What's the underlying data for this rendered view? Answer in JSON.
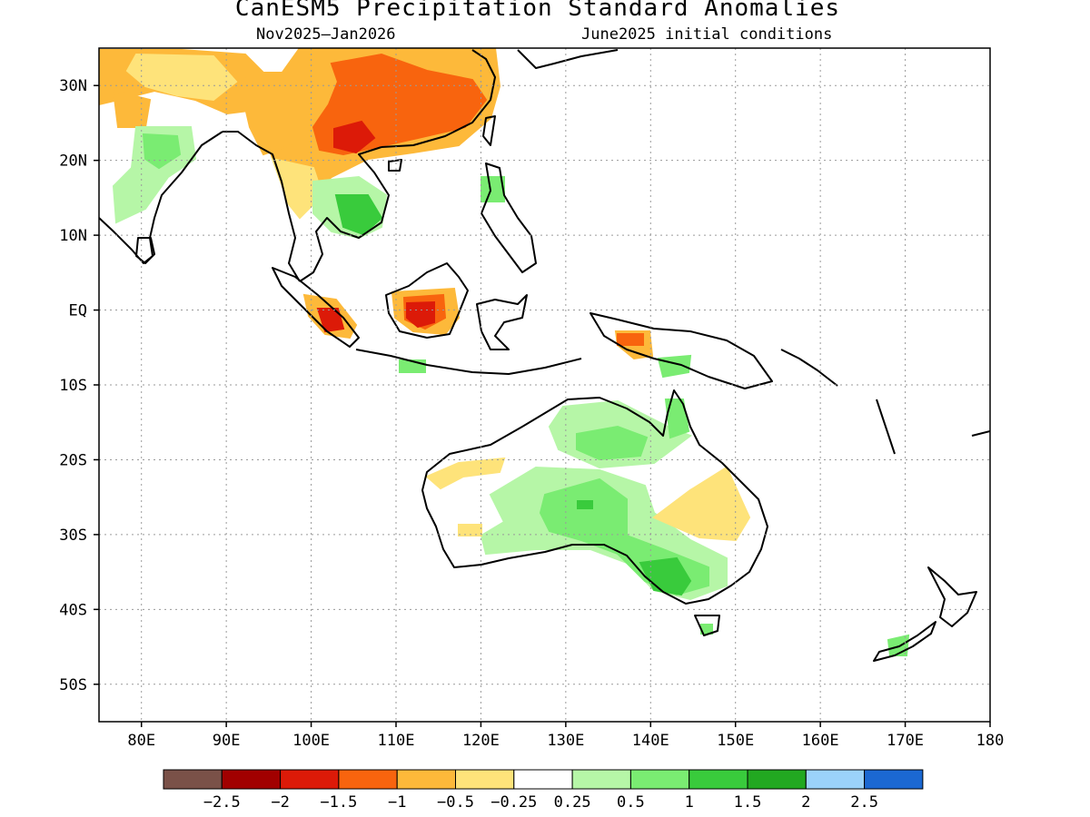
{
  "title": "CanESM5 Precipitation Standard Anomalies",
  "subtitle_left": "Nov2025–Jan2026",
  "subtitle_right": "June2025 initial conditions",
  "lat_labels": [
    "30N",
    "20N",
    "10N",
    "EQ",
    "10S",
    "20S",
    "30S",
    "40S",
    "50S"
  ],
  "lat_values": [
    30,
    20,
    10,
    0,
    -10,
    -20,
    -30,
    -40,
    -50
  ],
  "lon_labels": [
    "80E",
    "90E",
    "100E",
    "110E",
    "120E",
    "130E",
    "140E",
    "150E",
    "160E",
    "170E",
    "180"
  ],
  "lon_values": [
    80,
    90,
    100,
    110,
    120,
    130,
    140,
    150,
    160,
    170,
    180
  ],
  "map_extent": {
    "lon": [
      75,
      180
    ],
    "lat": [
      -55,
      35
    ]
  },
  "colorbar": {
    "colors": [
      "#7a5148",
      "#a10000",
      "#dc1a08",
      "#f8640e",
      "#fdb93a",
      "#fee37a",
      "#ffffff",
      "#b6f6a7",
      "#7aec72",
      "#39cb3c",
      "#22a821",
      "#9bd2fa",
      "#1b68d2"
    ],
    "labels": [
      "−2.5",
      "−2",
      "−1.5",
      "−1",
      "−0.5",
      "−0.25",
      "0.25",
      "0.5",
      "1",
      "1.5",
      "2",
      "2.5"
    ]
  },
  "anomaly_colors": {
    "dry_mod": "#fdb93a",
    "dry_weak": "#fee37a",
    "dry_strong": "#f8640e",
    "dry_very": "#dc1a08",
    "wet_weak": "#b6f6a7",
    "wet_mod": "#7aec72",
    "wet_strong": "#39cb3c"
  }
}
